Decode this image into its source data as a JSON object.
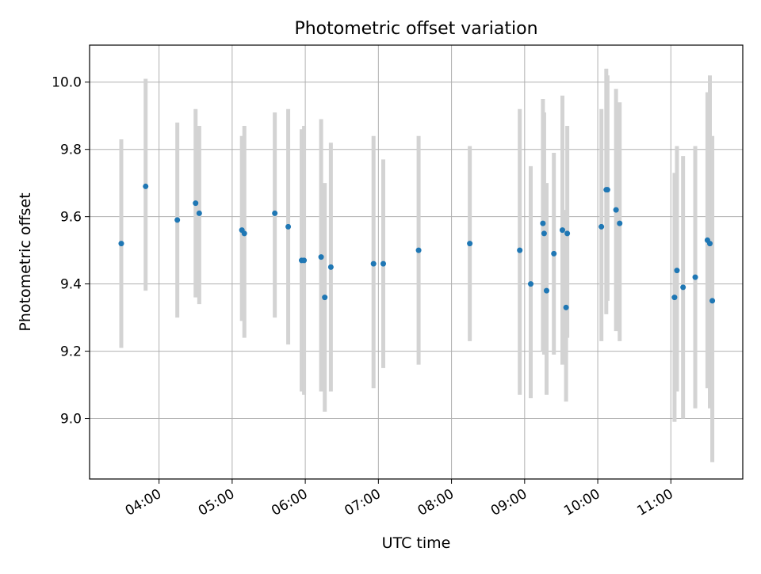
{
  "chart_data": {
    "type": "scatter",
    "title": "Photometric offset variation",
    "xlabel": "UTC time",
    "ylabel": "Photometric offset",
    "x_tick_labels": [
      "04:00",
      "05:00",
      "06:00",
      "07:00",
      "08:00",
      "09:00",
      "10:00",
      "11:00"
    ],
    "x_tick_hours": [
      4,
      5,
      6,
      7,
      8,
      9,
      10,
      11
    ],
    "y_ticks": [
      9.0,
      9.2,
      9.4,
      9.6,
      9.8,
      10.0
    ],
    "y_tick_labels": [
      "9.0",
      "9.2",
      "9.4",
      "9.6",
      "9.8",
      "10.0"
    ],
    "xlim": [
      "03:03",
      "11:59"
    ],
    "ylim": [
      8.82,
      10.11
    ],
    "grid": true,
    "colors": {
      "marker": "#1f77b4",
      "errorbar": "#d3d3d3",
      "grid": "#b0b0b0"
    },
    "points": [
      {
        "t": "03:29",
        "y": 9.52,
        "lo": 9.21,
        "hi": 9.83
      },
      {
        "t": "03:49",
        "y": 9.69,
        "lo": 9.38,
        "hi": 10.01
      },
      {
        "t": "04:15",
        "y": 9.59,
        "lo": 9.3,
        "hi": 9.88
      },
      {
        "t": "04:30",
        "y": 9.64,
        "lo": 9.36,
        "hi": 9.92
      },
      {
        "t": "04:33",
        "y": 9.61,
        "lo": 9.34,
        "hi": 9.87
      },
      {
        "t": "05:08",
        "y": 9.56,
        "lo": 9.29,
        "hi": 9.84
      },
      {
        "t": "05:10",
        "y": 9.55,
        "lo": 9.24,
        "hi": 9.87
      },
      {
        "t": "05:35",
        "y": 9.61,
        "lo": 9.3,
        "hi": 9.91
      },
      {
        "t": "05:46",
        "y": 9.57,
        "lo": 9.22,
        "hi": 9.92
      },
      {
        "t": "05:57",
        "y": 9.47,
        "lo": 9.08,
        "hi": 9.86
      },
      {
        "t": "05:59",
        "y": 9.47,
        "lo": 9.07,
        "hi": 9.87
      },
      {
        "t": "06:13",
        "y": 9.48,
        "lo": 9.08,
        "hi": 9.89
      },
      {
        "t": "06:16",
        "y": 9.36,
        "lo": 9.02,
        "hi": 9.7
      },
      {
        "t": "06:21",
        "y": 9.45,
        "lo": 9.08,
        "hi": 9.82
      },
      {
        "t": "06:56",
        "y": 9.46,
        "lo": 9.09,
        "hi": 9.84
      },
      {
        "t": "07:04",
        "y": 9.46,
        "lo": 9.15,
        "hi": 9.77
      },
      {
        "t": "07:33",
        "y": 9.5,
        "lo": 9.16,
        "hi": 9.84
      },
      {
        "t": "08:15",
        "y": 9.52,
        "lo": 9.23,
        "hi": 9.81
      },
      {
        "t": "08:56",
        "y": 9.5,
        "lo": 9.07,
        "hi": 9.92
      },
      {
        "t": "09:05",
        "y": 9.4,
        "lo": 9.06,
        "hi": 9.75
      },
      {
        "t": "09:15",
        "y": 9.58,
        "lo": 9.2,
        "hi": 9.95
      },
      {
        "t": "09:16",
        "y": 9.55,
        "lo": 9.19,
        "hi": 9.91
      },
      {
        "t": "09:18",
        "y": 9.38,
        "lo": 9.07,
        "hi": 9.7
      },
      {
        "t": "09:24",
        "y": 9.49,
        "lo": 9.19,
        "hi": 9.79
      },
      {
        "t": "09:31",
        "y": 9.56,
        "lo": 9.16,
        "hi": 9.96
      },
      {
        "t": "09:34",
        "y": 9.33,
        "lo": 9.05,
        "hi": 9.62
      },
      {
        "t": "09:35",
        "y": 9.55,
        "lo": 9.24,
        "hi": 9.87
      },
      {
        "t": "10:03",
        "y": 9.57,
        "lo": 9.23,
        "hi": 9.92
      },
      {
        "t": "10:07",
        "y": 9.68,
        "lo": 9.31,
        "hi": 10.04
      },
      {
        "t": "10:08",
        "y": 9.68,
        "lo": 9.35,
        "hi": 10.02
      },
      {
        "t": "10:15",
        "y": 9.62,
        "lo": 9.26,
        "hi": 9.98
      },
      {
        "t": "10:18",
        "y": 9.58,
        "lo": 9.23,
        "hi": 9.94
      },
      {
        "t": "11:03",
        "y": 9.36,
        "lo": 8.99,
        "hi": 9.73
      },
      {
        "t": "11:05",
        "y": 9.44,
        "lo": 9.08,
        "hi": 9.81
      },
      {
        "t": "11:10",
        "y": 9.39,
        "lo": 9.0,
        "hi": 9.78
      },
      {
        "t": "11:20",
        "y": 9.42,
        "lo": 9.03,
        "hi": 9.81
      },
      {
        "t": "11:30",
        "y": 9.53,
        "lo": 9.09,
        "hi": 9.97
      },
      {
        "t": "11:32",
        "y": 9.52,
        "lo": 9.03,
        "hi": 10.02
      },
      {
        "t": "11:34",
        "y": 9.35,
        "lo": 8.87,
        "hi": 9.84
      }
    ]
  }
}
